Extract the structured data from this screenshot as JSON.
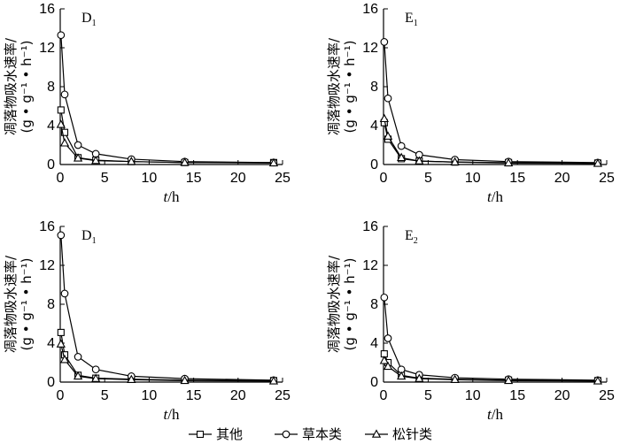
{
  "chart_data": [
    {
      "type": "line",
      "panel_label": "D",
      "panel_sub": "1",
      "ylabel_main": "凋落物吸水速率/",
      "ylabel_unit": "(g • g⁻¹ • h⁻¹)",
      "xlabel": "t/h",
      "xlim": [
        0,
        25
      ],
      "ylim": [
        0,
        16
      ],
      "x_ticks": [
        "0",
        "5",
        "10",
        "15",
        "20",
        "25"
      ],
      "y_ticks": [
        "0",
        "4",
        "8",
        "12",
        "16"
      ],
      "x": [
        0.083,
        0.5,
        2,
        4,
        8,
        14,
        24
      ],
      "series": [
        {
          "name": "其他",
          "marker": "square",
          "values": [
            5.6,
            3.3,
            0.7,
            0.45,
            0.3,
            0.2,
            0.2
          ]
        },
        {
          "name": "草本类",
          "marker": "circle",
          "values": [
            13.3,
            7.2,
            2.0,
            1.1,
            0.55,
            0.3,
            0.2
          ]
        },
        {
          "name": "松针类",
          "marker": "triangle",
          "values": [
            4.1,
            2.2,
            0.65,
            0.4,
            0.3,
            0.2,
            0.15
          ]
        }
      ]
    },
    {
      "type": "line",
      "panel_label": "E",
      "panel_sub": "1",
      "ylabel_main": "凋落物吸水速率/",
      "ylabel_unit": "(g • g⁻¹ • h⁻¹)",
      "xlabel": "t/h",
      "xlim": [
        0,
        25
      ],
      "ylim": [
        0,
        16
      ],
      "x_ticks": [
        "0",
        "5",
        "10",
        "15",
        "20",
        "25"
      ],
      "y_ticks": [
        "0",
        "4",
        "8",
        "12",
        "16"
      ],
      "x": [
        0.083,
        0.5,
        2,
        4,
        8,
        14,
        24
      ],
      "series": [
        {
          "name": "其他",
          "marker": "square",
          "values": [
            4.3,
            2.6,
            0.6,
            0.35,
            0.25,
            0.2,
            0.15
          ]
        },
        {
          "name": "草本类",
          "marker": "circle",
          "values": [
            12.6,
            6.8,
            1.9,
            1.0,
            0.5,
            0.3,
            0.2
          ]
        },
        {
          "name": "松针类",
          "marker": "triangle",
          "values": [
            4.7,
            2.9,
            0.7,
            0.35,
            0.25,
            0.15,
            0.1
          ]
        }
      ]
    },
    {
      "type": "line",
      "panel_label": "D",
      "panel_sub": "1",
      "ylabel_main": "凋落物吸水速率/",
      "ylabel_unit": "(g • g⁻¹ • h⁻¹)",
      "xlabel": "t/h",
      "xlim": [
        0,
        25
      ],
      "ylim": [
        0,
        16
      ],
      "x_ticks": [
        "0",
        "5",
        "10",
        "15",
        "20",
        "25"
      ],
      "y_ticks": [
        "0",
        "4",
        "8",
        "12",
        "16"
      ],
      "x": [
        0.083,
        0.5,
        2,
        4,
        8,
        14,
        24
      ],
      "series": [
        {
          "name": "其他",
          "marker": "square",
          "values": [
            5.1,
            2.8,
            0.7,
            0.4,
            0.3,
            0.2,
            0.15
          ]
        },
        {
          "name": "草本类",
          "marker": "circle",
          "values": [
            15.1,
            9.1,
            2.6,
            1.3,
            0.6,
            0.35,
            0.2
          ]
        },
        {
          "name": "松针类",
          "marker": "triangle",
          "values": [
            3.9,
            2.3,
            0.6,
            0.35,
            0.25,
            0.15,
            0.1
          ]
        }
      ]
    },
    {
      "type": "line",
      "panel_label": "E",
      "panel_sub": "2",
      "ylabel_main": "凋落物吸水速率/",
      "ylabel_unit": "(g • g⁻¹ • h⁻¹)",
      "xlabel": "t/h",
      "xlim": [
        0,
        25
      ],
      "ylim": [
        0,
        16
      ],
      "x_ticks": [
        "0",
        "5",
        "10",
        "15",
        "20",
        "25"
      ],
      "y_ticks": [
        "0",
        "4",
        "8",
        "12",
        "16"
      ],
      "x": [
        0.083,
        0.5,
        2,
        4,
        8,
        14,
        24
      ],
      "series": [
        {
          "name": "其他",
          "marker": "square",
          "values": [
            2.9,
            2.0,
            0.7,
            0.4,
            0.3,
            0.2,
            0.15
          ]
        },
        {
          "name": "草本类",
          "marker": "circle",
          "values": [
            8.7,
            4.5,
            1.3,
            0.75,
            0.45,
            0.3,
            0.2
          ]
        },
        {
          "name": "松针类",
          "marker": "triangle",
          "values": [
            2.2,
            1.6,
            0.6,
            0.35,
            0.25,
            0.15,
            0.1
          ]
        }
      ]
    }
  ],
  "legend": [
    {
      "label": "其他",
      "marker": "square"
    },
    {
      "label": "草本类",
      "marker": "circle"
    },
    {
      "label": "松针类",
      "marker": "triangle"
    }
  ]
}
